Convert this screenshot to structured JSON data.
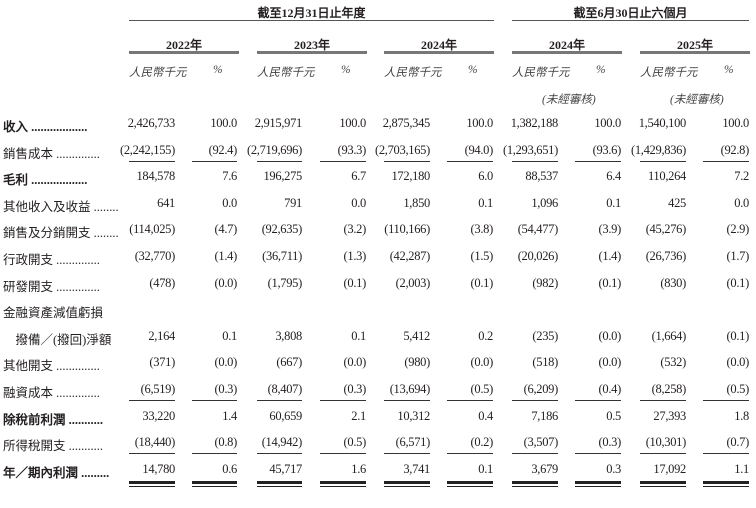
{
  "header": {
    "year_end_group": "截至12月31日止年度",
    "six_month_group": "截至6月30日止六個月",
    "columns": [
      {
        "year": "2022年",
        "amount_unit": "人民幣千元",
        "pct_unit": "%",
        "note": ""
      },
      {
        "year": "2023年",
        "amount_unit": "人民幣千元",
        "pct_unit": "%",
        "note": ""
      },
      {
        "year": "2024年",
        "amount_unit": "人民幣千元",
        "pct_unit": "%",
        "note": ""
      },
      {
        "year": "2024年",
        "amount_unit": "人民幣千元",
        "pct_unit": "%",
        "note": "(未經審核)"
      },
      {
        "year": "2025年",
        "amount_unit": "人民幣千元",
        "pct_unit": "%",
        "note": "(未經審核)"
      }
    ]
  },
  "rows": [
    {
      "label": "收入 ..................",
      "values": [
        "2,426,733",
        "100.0",
        "2,915,971",
        "100.0",
        "2,875,345",
        "100.0",
        "1,382,188",
        "100.0",
        "1,540,100",
        "100.0"
      ],
      "bold": true
    },
    {
      "label": "銷售成本 ..............",
      "values": [
        "(2,242,155)",
        "(92.4)",
        "(2,719,696)",
        "(93.3)",
        "(2,703,165)",
        "(94.0)",
        "(1,293,651)",
        "(93.6)",
        "(1,429,836)",
        "(92.8)"
      ],
      "rule": "single"
    },
    {
      "label": "毛利 ..................",
      "values": [
        "184,578",
        "7.6",
        "196,275",
        "6.7",
        "172,180",
        "6.0",
        "88,537",
        "6.4",
        "110,264",
        "7.2"
      ],
      "bold": true
    },
    {
      "label": "其他收入及收益 ........",
      "values": [
        "641",
        "0.0",
        "791",
        "0.0",
        "1,850",
        "0.1",
        "1,096",
        "0.1",
        "425",
        "0.0"
      ]
    },
    {
      "label": "銷售及分銷開支 ........",
      "values": [
        "(114,025)",
        "(4.7)",
        "(92,635)",
        "(3.2)",
        "(110,166)",
        "(3.8)",
        "(54,477)",
        "(3.9)",
        "(45,276)",
        "(2.9)"
      ]
    },
    {
      "label": "行政開支 ..............",
      "values": [
        "(32,770)",
        "(1.4)",
        "(36,711)",
        "(1.3)",
        "(42,287)",
        "(1.5)",
        "(20,026)",
        "(1.4)",
        "(26,736)",
        "(1.7)"
      ]
    },
    {
      "label": "研發開支 ..............",
      "values": [
        "(478)",
        "(0.0)",
        "(1,795)",
        "(0.1)",
        "(2,003)",
        "(0.1)",
        "(982)",
        "(0.1)",
        "(830)",
        "(0.1)"
      ]
    },
    {
      "label": "金融資產減值虧損",
      "values": [
        "",
        "",
        "",
        "",
        "",
        "",
        "",
        "",
        "",
        ""
      ]
    },
    {
      "label": "　撥備／(撥回)淨額",
      "values": [
        "2,164",
        "0.1",
        "3,808",
        "0.1",
        "5,412",
        "0.2",
        "(235)",
        "(0.0)",
        "(1,664)",
        "(0.1)"
      ]
    },
    {
      "label": "其他開支 ..............",
      "values": [
        "(371)",
        "(0.0)",
        "(667)",
        "(0.0)",
        "(980)",
        "(0.0)",
        "(518)",
        "(0.0)",
        "(532)",
        "(0.0)"
      ]
    },
    {
      "label": "融資成本 ..............",
      "values": [
        "(6,519)",
        "(0.3)",
        "(8,407)",
        "(0.3)",
        "(13,694)",
        "(0.5)",
        "(6,209)",
        "(0.4)",
        "(8,258)",
        "(0.5)"
      ],
      "rule": "single"
    },
    {
      "label": "除稅前利潤 ...........",
      "values": [
        "33,220",
        "1.4",
        "60,659",
        "2.1",
        "10,312",
        "0.4",
        "7,186",
        "0.5",
        "27,393",
        "1.8"
      ],
      "bold": true
    },
    {
      "label": "所得稅開支 ...........",
      "values": [
        "(18,440)",
        "(0.8)",
        "(14,942)",
        "(0.5)",
        "(6,571)",
        "(0.2)",
        "(3,507)",
        "(0.3)",
        "(10,301)",
        "(0.7)"
      ],
      "rule": "single"
    },
    {
      "label": "年／期內利潤 .........",
      "values": [
        "14,780",
        "0.6",
        "45,717",
        "1.6",
        "3,741",
        "0.1",
        "3,679",
        "0.3",
        "17,092",
        "1.1"
      ],
      "bold": true,
      "rule": "double"
    }
  ]
}
